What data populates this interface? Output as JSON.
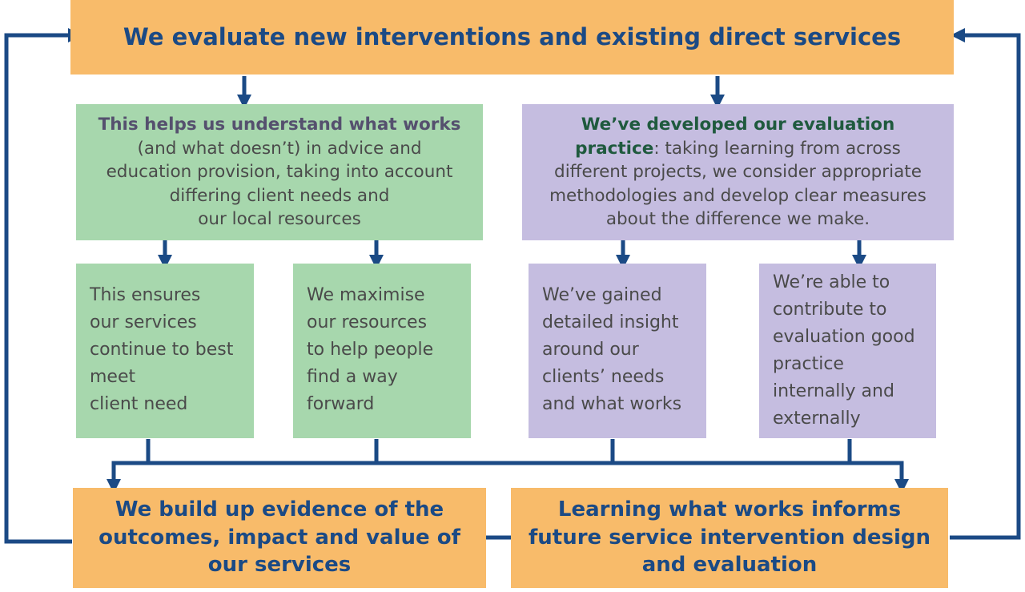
{
  "top": {
    "text": "We evaluate new interventions and existing direct services"
  },
  "left_middle": {
    "bold": "This helps us understand what works",
    "line1": "(and what doesn’t) in advice and",
    "line2": "education provision, taking into account",
    "line3": "differing client needs and",
    "line4": "our local resources"
  },
  "right_middle": {
    "bold_line1": "We’ve developed our evaluation",
    "bold_word": "practice",
    "rest_line2": ": taking learning from across",
    "line3": "different projects, we consider appropriate",
    "line4": "methodologies and develop clear measures",
    "line5": "about the difference we make."
  },
  "small_boxes": [
    {
      "lines": [
        "This ensures",
        "our services",
        "continue to best",
        "meet",
        "client need"
      ]
    },
    {
      "lines": [
        "We maximise",
        "our resources",
        "to help people",
        "find a way",
        "forward"
      ]
    },
    {
      "lines": [
        "We’ve gained",
        "detailed insight",
        "around our",
        "clients’ needs",
        "and what works"
      ]
    },
    {
      "lines": [
        "We’re able to",
        "contribute to",
        "evaluation good",
        "practice",
        "internally and",
        "externally"
      ]
    }
  ],
  "bottom_left": {
    "lines": [
      "We build up evidence of the",
      "outcomes, impact and value of",
      "our services"
    ]
  },
  "bottom_right": {
    "lines": [
      "Learning what works informs",
      "future service intervention design",
      "and evaluation"
    ]
  },
  "colors": {
    "orange": "#f8bb6a",
    "green": "#a7d7ad",
    "purple": "#c5bde0",
    "navy": "#1b4a85"
  }
}
